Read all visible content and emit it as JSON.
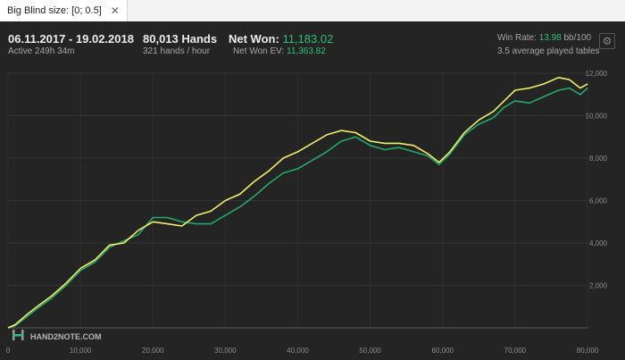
{
  "tab": {
    "label": "Big Blind size: [0; 0.5]",
    "close": "✕"
  },
  "header": {
    "dates": "06.11.2017 - 19.02.2018",
    "active": "Active 249h 34m",
    "hands": "80,013 Hands",
    "hands_per_hour": "321 hands / hour",
    "net_won_label": "Net Won:",
    "net_won_value": "11,183.02",
    "net_won_ev_label": "Net Won  EV:",
    "net_won_ev_value": "11,363.82",
    "win_rate_label": "Win Rate:",
    "win_rate_value": "13.98",
    "win_rate_unit": "bb/100",
    "tables": "3.5 average played tables",
    "settings_icon": "gear-icon"
  },
  "watermark": {
    "brand": "HAND2NOTE.COM",
    "icon": "h2n-logo-icon"
  },
  "colors": {
    "net_won": "#f0ee6a",
    "net_won_ev": "#22a96b",
    "accent_text": "#2fbf77",
    "background": "#242424"
  },
  "chart_data": {
    "type": "line",
    "title": "",
    "xlabel": "",
    "ylabel": "",
    "xlim": [
      0,
      80000
    ],
    "ylim": [
      0,
      12000
    ],
    "x_ticks": [
      "0",
      "10,000",
      "20,000",
      "30,000",
      "40,000",
      "50,000",
      "60,000",
      "70,000",
      "80,000"
    ],
    "y_ticks": [
      "2,000",
      "4,000",
      "6,000",
      "8,000",
      "10,000",
      "12,000"
    ],
    "grid": true,
    "series": [
      {
        "color": "#f0ee6a",
        "x": [
          0,
          1000,
          2500,
          4000,
          6000,
          8000,
          10000,
          12000,
          14000,
          16000,
          18000,
          20000,
          22000,
          24000,
          26000,
          28000,
          30000,
          32000,
          34000,
          36000,
          38000,
          40000,
          42000,
          44000,
          46000,
          48000,
          50000,
          52000,
          54000,
          56000,
          58000,
          59500,
          61000,
          63000,
          65000,
          67000,
          68500,
          70000,
          72000,
          74000,
          76000,
          77500,
          79000,
          80013
        ],
        "y": [
          0,
          150,
          600,
          1000,
          1500,
          2100,
          2800,
          3200,
          3900,
          4000,
          4600,
          5000,
          4900,
          4800,
          5300,
          5500,
          6000,
          6300,
          6900,
          7400,
          8000,
          8300,
          8700,
          9100,
          9300,
          9200,
          8800,
          8700,
          8700,
          8600,
          8200,
          7800,
          8300,
          9200,
          9800,
          10200,
          10700,
          11200,
          11300,
          11500,
          11800,
          11700,
          11300,
          11500
        ]
      },
      {
        "color": "#22a96b",
        "x": [
          0,
          1000,
          2500,
          4000,
          6000,
          8000,
          10000,
          12000,
          14000,
          16000,
          18000,
          20000,
          22000,
          24000,
          26000,
          28000,
          30000,
          32000,
          34000,
          36000,
          38000,
          40000,
          42000,
          44000,
          46000,
          48000,
          50000,
          52000,
          54000,
          56000,
          58000,
          59500,
          61000,
          63000,
          65000,
          67000,
          68500,
          70000,
          72000,
          74000,
          76000,
          77500,
          79000,
          80013
        ],
        "y": [
          0,
          100,
          500,
          900,
          1400,
          2000,
          2700,
          3100,
          3800,
          4100,
          4400,
          5200,
          5200,
          5000,
          4900,
          4900,
          5300,
          5700,
          6200,
          6800,
          7300,
          7500,
          7900,
          8300,
          8800,
          9000,
          8600,
          8400,
          8500,
          8300,
          8100,
          7700,
          8200,
          9100,
          9600,
          9900,
          10400,
          10700,
          10600,
          10900,
          11200,
          11300,
          11000,
          11300
        ]
      }
    ]
  }
}
